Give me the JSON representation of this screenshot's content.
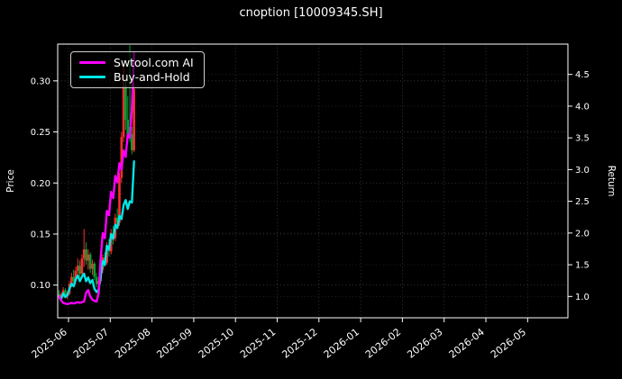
{
  "title": "cnoption [10009345.SH]",
  "colors": {
    "background": "#000000",
    "text": "#ffffff",
    "grid": "#4d4d4d",
    "spine": "#ffffff",
    "candle_up": "#fd2e2e",
    "candle_down": "#00a032",
    "series_ai": "#ff00ff",
    "series_bh": "#00e6e6"
  },
  "legend": {
    "items": [
      {
        "label": "Swtool.com AI",
        "color": "#ff00ff"
      },
      {
        "label": "Buy-and-Hold",
        "color": "#00e6e6"
      }
    ]
  },
  "chart_data": {
    "type": "candlestick+line",
    "title": "cnoption [10009345.SH]",
    "grid": "dotted, both axes",
    "legend_position": "upper left",
    "x_domain_days": [
      -0.65,
      244.4
    ],
    "x_ticks": [
      {
        "pos": 4.55,
        "label": "2025-06"
      },
      {
        "pos": 24.6,
        "label": "2025-07"
      },
      {
        "pos": 44.64,
        "label": "2025-08"
      },
      {
        "pos": 64.69,
        "label": "2025-09"
      },
      {
        "pos": 84.73,
        "label": "2025-10"
      },
      {
        "pos": 104.78,
        "label": "2025-11"
      },
      {
        "pos": 124.82,
        "label": "2025-12"
      },
      {
        "pos": 144.87,
        "label": "2026-01"
      },
      {
        "pos": 164.91,
        "label": "2026-02"
      },
      {
        "pos": 184.96,
        "label": "2026-03"
      },
      {
        "pos": 205.0,
        "label": "2026-04"
      },
      {
        "pos": 225.05,
        "label": "2026-05"
      }
    ],
    "left_axis": {
      "label": "Price",
      "ticks": [
        0.1,
        0.15,
        0.2,
        0.25,
        0.3
      ],
      "range": [
        0.068,
        0.336
      ]
    },
    "right_axis": {
      "label": "Return",
      "ticks": [
        1.0,
        1.5,
        2.0,
        2.5,
        3.0,
        3.5,
        4.0,
        4.5
      ],
      "range": [
        0.664,
        4.978
      ]
    },
    "candles": {
      "up_color": "#fd2e2e",
      "down_color": "#00a032",
      "ohlc": [
        [
          0.091,
          0.095,
          0.086,
          0.089
        ],
        [
          0.089,
          0.093,
          0.085,
          0.091
        ],
        [
          0.091,
          0.098,
          0.088,
          0.095
        ],
        [
          0.095,
          0.097,
          0.087,
          0.089
        ],
        [
          0.089,
          0.094,
          0.086,
          0.092
        ],
        [
          0.092,
          0.104,
          0.09,
          0.101
        ],
        [
          0.101,
          0.112,
          0.098,
          0.108
        ],
        [
          0.108,
          0.115,
          0.102,
          0.104
        ],
        [
          0.104,
          0.118,
          0.101,
          0.114
        ],
        [
          0.114,
          0.126,
          0.11,
          0.119
        ],
        [
          0.119,
          0.124,
          0.108,
          0.111
        ],
        [
          0.111,
          0.13,
          0.108,
          0.126
        ],
        [
          0.126,
          0.155,
          0.118,
          0.135
        ],
        [
          0.135,
          0.142,
          0.12,
          0.124
        ],
        [
          0.124,
          0.135,
          0.115,
          0.13
        ],
        [
          0.13,
          0.132,
          0.112,
          0.116
        ],
        [
          0.116,
          0.125,
          0.11,
          0.121
        ],
        [
          0.121,
          0.123,
          0.105,
          0.108
        ],
        [
          0.108,
          0.112,
          0.098,
          0.101
        ],
        [
          0.101,
          0.108,
          0.096,
          0.104
        ],
        [
          0.104,
          0.118,
          0.102,
          0.115
        ],
        [
          0.115,
          0.13,
          0.112,
          0.127
        ],
        [
          0.127,
          0.132,
          0.118,
          0.122
        ],
        [
          0.122,
          0.142,
          0.12,
          0.139
        ],
        [
          0.139,
          0.145,
          0.128,
          0.133
        ],
        [
          0.133,
          0.155,
          0.13,
          0.151
        ],
        [
          0.151,
          0.158,
          0.14,
          0.146
        ],
        [
          0.146,
          0.17,
          0.143,
          0.166
        ],
        [
          0.166,
          0.175,
          0.155,
          0.161
        ],
        [
          0.161,
          0.21,
          0.158,
          0.205
        ],
        [
          0.205,
          0.25,
          0.2,
          0.245
        ],
        [
          0.245,
          0.315,
          0.24,
          0.295
        ],
        [
          0.295,
          0.3,
          0.252,
          0.262
        ],
        [
          0.262,
          0.285,
          0.238,
          0.246
        ],
        [
          0.255,
          0.335,
          0.24,
          0.248
        ],
        [
          0.248,
          0.255,
          0.228,
          0.232
        ],
        [
          0.232,
          0.298,
          0.23,
          0.292
        ]
      ]
    },
    "series": [
      {
        "name": "Swtool.com AI",
        "axis": "right",
        "color": "#ff00ff",
        "values": [
          1.0,
          0.94,
          0.9,
          0.89,
          0.88,
          0.89,
          0.9,
          0.89,
          0.9,
          0.91,
          0.9,
          0.91,
          0.92,
          1.06,
          1.1,
          1.0,
          0.95,
          0.93,
          0.92,
          1.05,
          1.6,
          2.0,
          1.92,
          2.35,
          2.28,
          2.65,
          2.55,
          2.9,
          2.8,
          3.1,
          3.0,
          3.3,
          3.2,
          3.55,
          3.5,
          3.95,
          4.85
        ]
      },
      {
        "name": "Buy-and-Hold",
        "axis": "right",
        "color": "#00e6e6",
        "values": [
          1.0,
          0.96,
          1.05,
          0.99,
          1.02,
          1.12,
          1.2,
          1.16,
          1.27,
          1.33,
          1.24,
          1.31,
          1.36,
          1.24,
          1.3,
          1.21,
          1.26,
          1.12,
          1.07,
          1.11,
          1.3,
          1.56,
          1.5,
          1.8,
          1.74,
          1.98,
          1.91,
          2.13,
          2.08,
          2.27,
          2.22,
          2.44,
          2.52,
          2.38,
          2.5,
          2.48,
          3.13
        ]
      }
    ]
  }
}
